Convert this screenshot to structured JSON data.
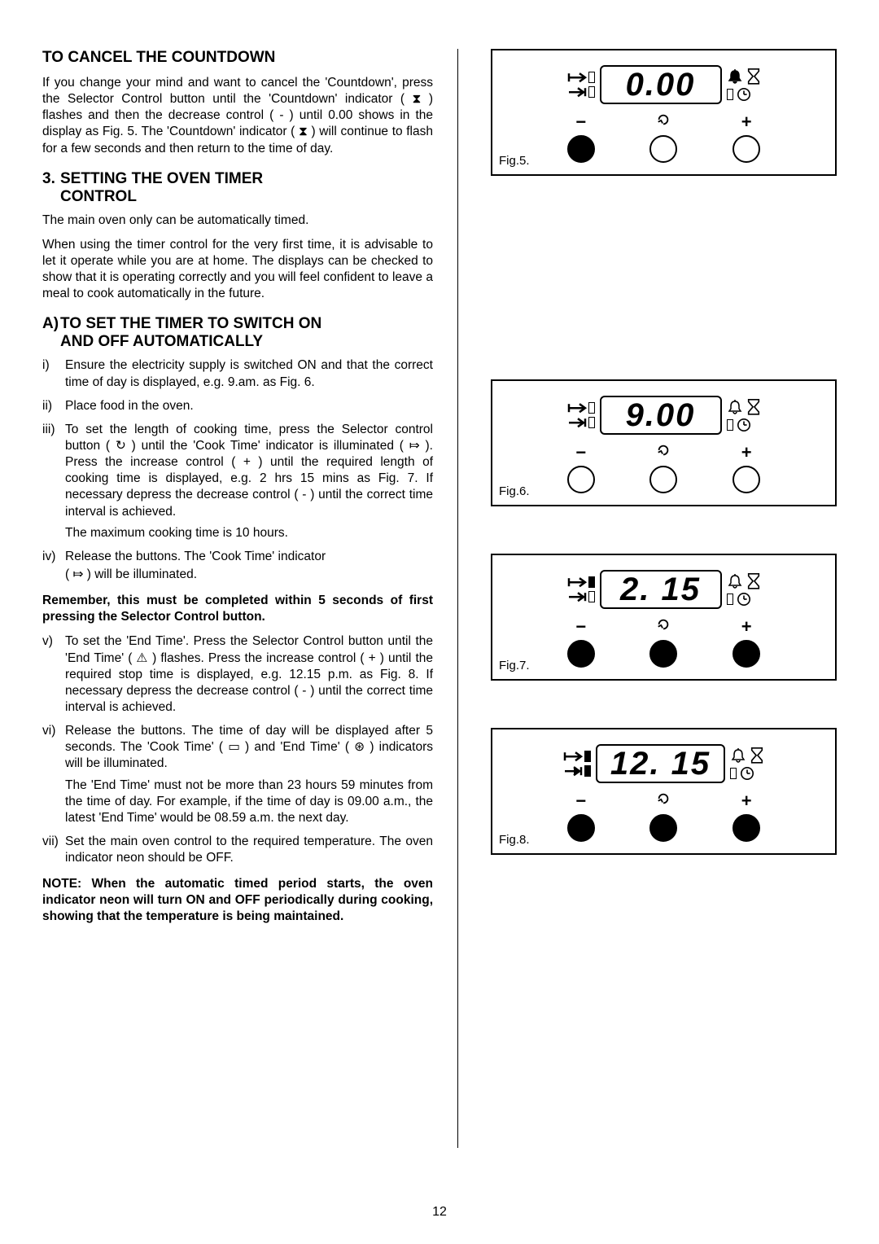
{
  "pageNumber": "12",
  "headings": {
    "h1": "TO CANCEL THE COUNTDOWN",
    "h2_num": "3.",
    "h2_txt1": "SETTING THE OVEN TIMER",
    "h2_txt2": "CONTROL",
    "h3_num": "A)",
    "h3_txt1": "TO SET THE TIMER TO SWITCH ON",
    "h3_txt2": "AND OFF AUTOMATICALLY"
  },
  "para": {
    "cancel": "If you change your mind and want to cancel the 'Countdown', press the Selector Control button until the 'Countdown' indicator ( ⧗ ) flashes and then the decrease control ( - ) until 0.00 shows in the display as Fig. 5.  The 'Countdown' indicator ( ⧗ ) will continue to flash for a few seconds and then return to the time of day.",
    "mainOven": "The main oven only can be automatically timed.",
    "firstTime": "When using the timer control for the very first time, it is advisable to let it operate while you are at home. The displays can be checked to show that it is operating correctly and you will feel confident to leave a meal to cook automatically in the future.",
    "remember": "Remember, this must be completed within 5 seconds of first pressing the Selector Control button.",
    "note": "NOTE:  When the automatic timed period starts, the oven indicator neon will turn ON and OFF periodically during cooking, showing that the temperature is being maintained."
  },
  "steps": {
    "i": "Ensure the electricity supply is switched ON and that the correct time of day is displayed, e.g. 9.am. as Fig. 6.",
    "ii": "Place food in the oven.",
    "iii": "To set the length of cooking time, press the Selector control button ( ↻ ) until the 'Cook Time' indicator is illuminated ( ⤇ ).  Press the increase control ( + ) until the required length of cooking time is displayed, e.g. 2 hrs 15 mins as Fig. 7.  If necessary depress the decrease control ( - ) until the correct time interval is achieved.",
    "iii_b": "The maximum cooking time is 10 hours.",
    "iv": "Release the buttons. The 'Cook Time' indicator",
    "iv_b": "( ⤇ ) will be illuminated.",
    "v": "To set the 'End Time'.  Press the Selector Control button until the 'End Time' ( ⚠ ) flashes.  Press the increase control ( + ) until the required stop time is displayed, e.g. 12.15 p.m. as Fig. 8.  If necessary depress the decrease control ( - ) until the correct time interval is achieved.",
    "vi": "Release the buttons.  The time of day will be displayed  after 5 seconds. The 'Cook Time' ( ▭ ) and 'End Time' ( ⊛ ) indicators will be illuminated.",
    "vi_b": "The 'End Time' must not be more than 23 hours 59 minutes from the time of day.  For example, if the time of day is 09.00 a.m., the latest 'End Time' would be 08.59 a.m. the next day.",
    "vii": "Set the main oven control to the required temperature.  The oven indicator neon should be OFF."
  },
  "markers": {
    "i": "i)",
    "ii": "ii)",
    "iii": "iii)",
    "iv": "iv)",
    "v": "v)",
    "vi": "vi)",
    "vii": "vii)"
  },
  "figs": {
    "5": {
      "label": "Fig.5.",
      "display": "0.00",
      "minusFilled": true,
      "selFilled": false,
      "plusFilled": false,
      "cooktimeFilled": false,
      "endtimeFilled": false,
      "bellFilled": true
    },
    "6": {
      "label": "Fig.6.",
      "display": "9.00",
      "minusFilled": false,
      "selFilled": false,
      "plusFilled": false,
      "cooktimeFilled": false,
      "endtimeFilled": false,
      "bellFilled": false
    },
    "7": {
      "label": "Fig.7.",
      "display": "2. 15",
      "minusFilled": true,
      "selFilled": true,
      "plusFilled": true,
      "cooktimeFilled": true,
      "endtimeFilled": false,
      "bellFilled": false
    },
    "8": {
      "label": "Fig.8.",
      "display": "12. 15",
      "minusFilled": true,
      "selFilled": true,
      "plusFilled": true,
      "cooktimeFilled": true,
      "endtimeFilled": true,
      "bellFilled": false
    }
  },
  "buttonLabels": {
    "minus": "−",
    "plus": "+"
  }
}
